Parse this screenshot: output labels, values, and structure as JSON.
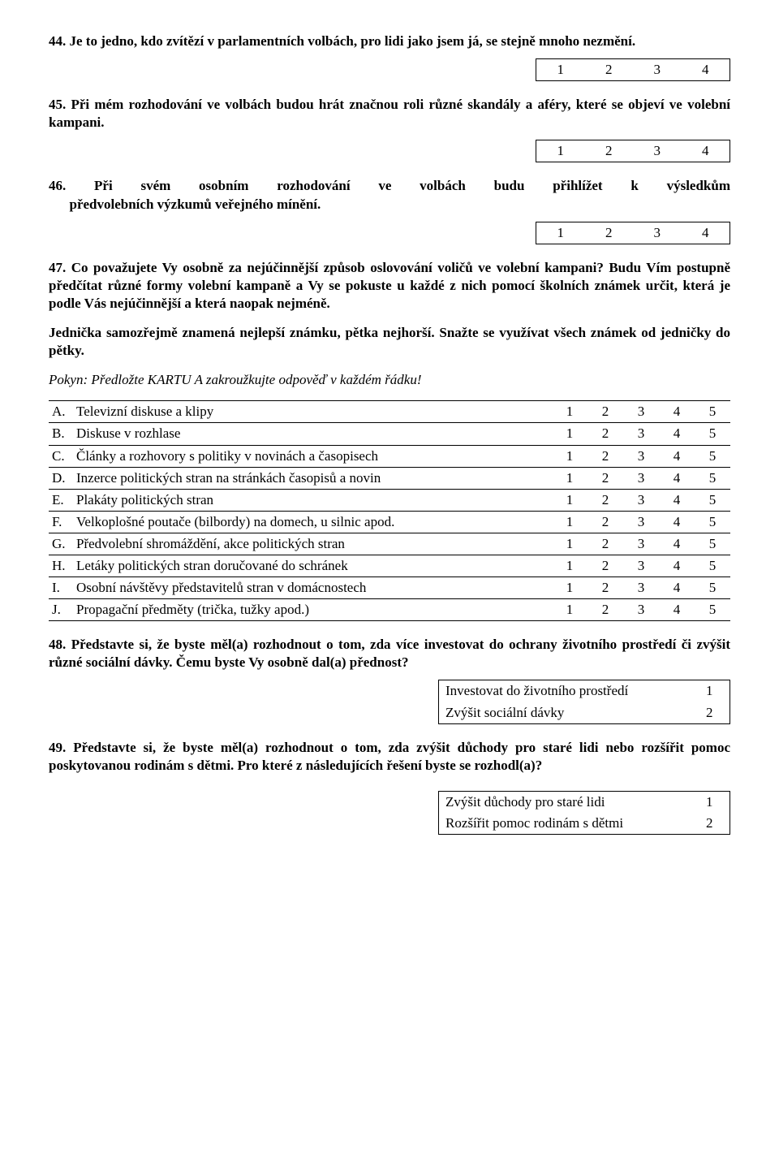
{
  "q44": {
    "num": "44.",
    "text": "Je to jedno, kdo zvítězí v parlamentních volbách, pro lidi jako jsem já, se stejně mnoho nezmění.",
    "scale": [
      "1",
      "2",
      "3",
      "4"
    ]
  },
  "q45": {
    "num": "45.",
    "text": "Při mém rozhodování ve volbách budou hrát značnou roli různé skandály a aféry, které se objeví ve volební kampani.",
    "scale": [
      "1",
      "2",
      "3",
      "4"
    ]
  },
  "q46": {
    "num": "46.",
    "line1": "Při svém osobním rozhodování ve volbách budu přihlížet k výsledkům",
    "line2": "předvolebních výzkumů veřejného mínění.",
    "scale": [
      "1",
      "2",
      "3",
      "4"
    ]
  },
  "q47": {
    "num": "47.",
    "text": "Co považujete Vy osobně za nejúčinnější způsob oslovování voličů ve volební kampani? Budu Vím postupně předčítat různé formy volební kampaně a Vy se pokuste u každé z nich pomocí školních známek určit, která je podle Vás nejúčinnější a která naopak nejméně.",
    "instruction": "Jednička samozřejmě znamená nejlepší známku, pětka nejhorší. Snažte se využívat všech známek od jedničky do pětky.",
    "pokyn": "Pokyn: Předložte KARTU A zakroužkujte odpověď v každém řádku!",
    "scale": [
      "1",
      "2",
      "3",
      "4",
      "5"
    ],
    "rows": [
      {
        "letter": "A.",
        "label": "Televizní diskuse a klipy"
      },
      {
        "letter": "B.",
        "label": "Diskuse v rozhlase"
      },
      {
        "letter": "C.",
        "label": "Články a rozhovory s politiky v novinách  a časopisech"
      },
      {
        "letter": "D.",
        "label": "Inzerce politických stran na stránkách časopisů a novin"
      },
      {
        "letter": "E.",
        "label": "Plakáty politických stran"
      },
      {
        "letter": "F.",
        "label": "Velkoplošné poutače (bilbordy) na domech, u silnic apod."
      },
      {
        "letter": "G.",
        "label": "Předvolební shromáždění, akce politických stran"
      },
      {
        "letter": "H.",
        "label": "Letáky politických stran doručované do schránek"
      },
      {
        "letter": "I.",
        "label": "Osobní návštěvy představitelů stran v domácnostech"
      },
      {
        "letter": "J.",
        "label": "Propagační předměty (trička, tužky apod.)"
      }
    ]
  },
  "q48": {
    "num": "48.",
    "text": "Představte si, že byste měl(a) rozhodnout o tom, zda více investovat do ochrany životního prostředí či zvýšit různé sociální dávky. Čemu byste Vy osobně dal(a) přednost?",
    "options": [
      {
        "label": "Investovat do životního prostředí",
        "val": "1"
      },
      {
        "label": "Zvýšit sociální dávky",
        "val": "2"
      }
    ]
  },
  "q49": {
    "num": "49.",
    "text": "Představte si, že byste měl(a) rozhodnout o tom, zda zvýšit důchody pro staré lidi nebo rozšířit pomoc poskytovanou rodinám s dětmi. Pro které z následujících řešení byste se rozhodl(a)?",
    "options": [
      {
        "label": "Zvýšit důchody pro staré lidi",
        "val": "1"
      },
      {
        "label": "Rozšířit pomoc rodinám s dětmi",
        "val": "2"
      }
    ]
  }
}
